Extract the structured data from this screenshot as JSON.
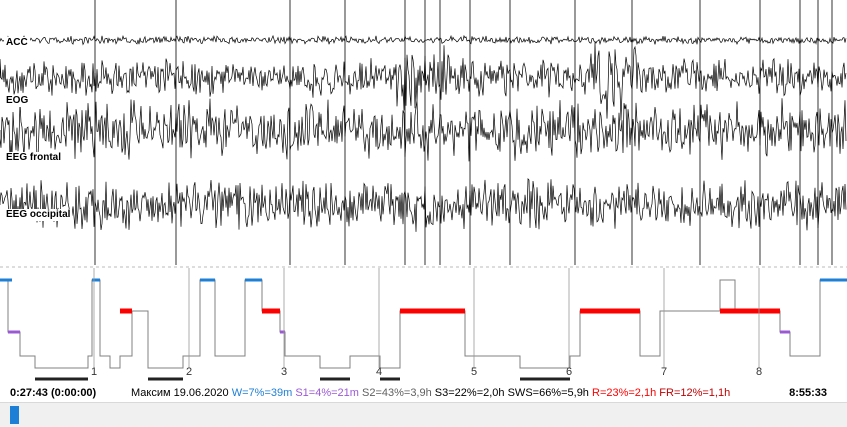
{
  "channels": [
    "ACC",
    "EOG",
    "EEG frontal",
    "EEG occipital"
  ],
  "hour_markers": [
    "1",
    "2",
    "3",
    "4",
    "5",
    "6",
    "7",
    "8"
  ],
  "status": {
    "start_time": "0:27:43 (0:00:00)",
    "name_date": "Максим 19.06.2020",
    "wake": "W=7%=39m",
    "s1": "S1=4%=21m",
    "s2": "S2=43%=3,9h",
    "s3": "S3=22%=2,0h",
    "sws": "SWS=66%=5,9h",
    "rem": "R=23%=2,1h",
    "fr": "FR=12%=1,1h",
    "end_time": "8:55:33"
  },
  "colors": {
    "wake": "#1e7fd6",
    "s1": "#9b59d6",
    "s2": "#707070",
    "s3": "#707070",
    "sws": "#222222",
    "rem": "#ff0000",
    "fr": "#c00000",
    "scroll": "#1e7fd6"
  }
}
